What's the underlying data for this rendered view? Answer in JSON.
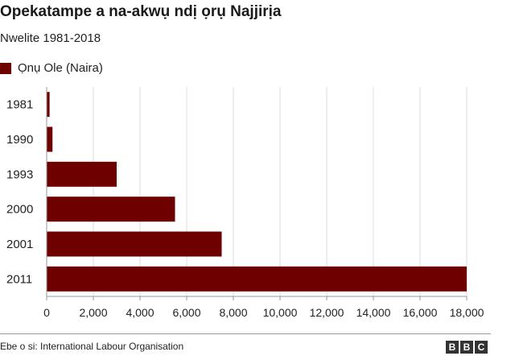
{
  "title": "Opekatampe a na-akwụ ndị ọrụ Najjirịa",
  "subtitle": "Nwelite 1981-2018",
  "source": "Ebe o si: International Labour Organisation",
  "logo": [
    "B",
    "B",
    "C"
  ],
  "colors": {
    "bar": "#6e0000",
    "grid": "#dddddd",
    "axis": "#999999",
    "text": "#222222"
  },
  "chart_data": {
    "type": "bar",
    "orientation": "horizontal",
    "title": "Opekatampe a na-akwụ ndị ọrụ Najjirịa",
    "subtitle": "Nwelite 1981-2018",
    "categories": [
      "1981",
      "1990",
      "1993",
      "2000",
      "2001",
      "2011"
    ],
    "series": [
      {
        "name": "Ọnụ Ole (Naira)",
        "values": [
          125,
          250,
          3000,
          5500,
          7500,
          18000
        ]
      }
    ],
    "xlim": [
      0,
      18000
    ],
    "xticks": [
      0,
      2000,
      4000,
      6000,
      8000,
      10000,
      12000,
      14000,
      16000,
      18000
    ],
    "xtick_labels": [
      "0",
      "2,000",
      "4,000",
      "6,000",
      "8,000",
      "10,000",
      "12,000",
      "14,000",
      "16,000",
      "18,000"
    ],
    "grid": true,
    "legend_position": "top-left"
  }
}
